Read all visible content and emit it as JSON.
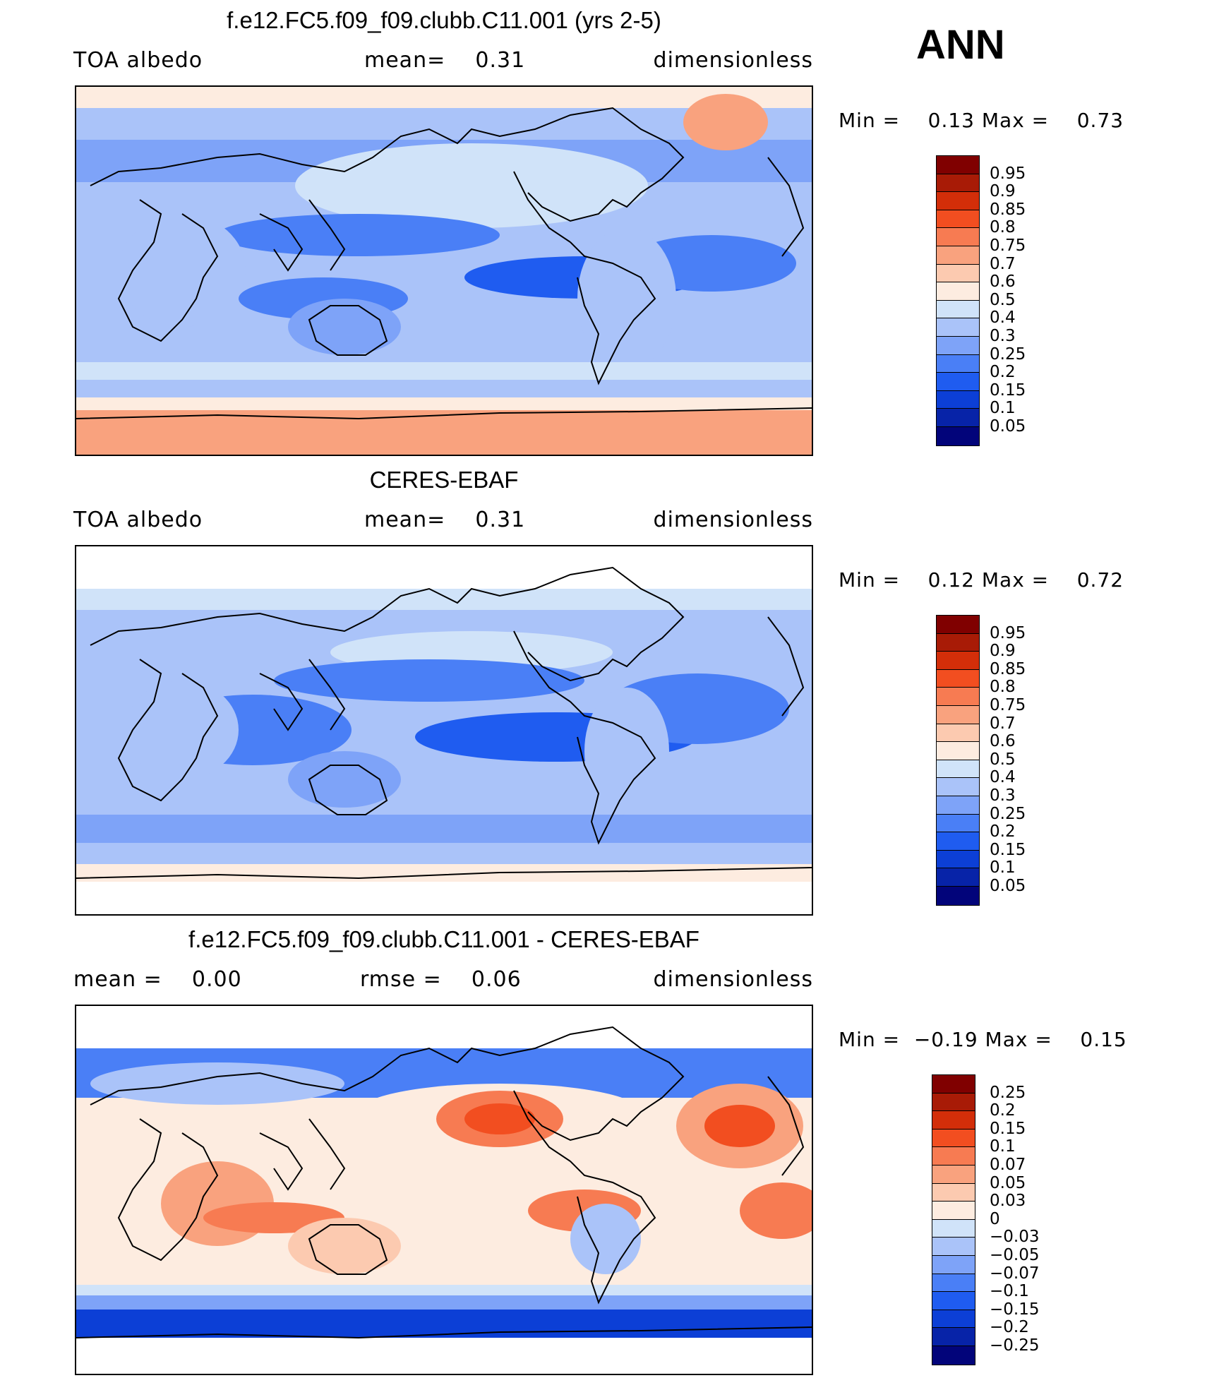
{
  "season_label": "ANN",
  "panels": [
    {
      "title": "f.e12.FC5.f09_f09.clubb.C11.001 (yrs 2-5)",
      "left_label": "TOA albedo",
      "center_label": "mean=    0.31",
      "right_label": "dimensionless",
      "minmax": "Min =    0.13 Max =    0.73"
    },
    {
      "title": "CERES-EBAF",
      "left_label": "TOA albedo",
      "center_label": "mean=    0.31",
      "right_label": "dimensionless",
      "minmax": "Min =    0.12 Max =    0.72"
    },
    {
      "title": "f.e12.FC5.f09_f09.clubb.C11.001 - CERES-EBAF",
      "left_label": "mean =    0.00",
      "center_label": "rmse =    0.06",
      "right_label": "dimensionless",
      "minmax": "Min =  −0.19 Max =    0.15"
    }
  ],
  "chart_data": [
    {
      "type": "heatmap",
      "title": "f.e12.FC5.f09_f09.clubb.C11.001 (yrs 2-5)",
      "variable": "TOA albedo",
      "units": "dimensionless",
      "mean": 0.31,
      "min": 0.13,
      "max": 0.73,
      "levels": [
        0.05,
        0.1,
        0.15,
        0.2,
        0.25,
        0.3,
        0.4,
        0.5,
        0.6,
        0.7,
        0.75,
        0.8,
        0.85,
        0.9,
        0.95
      ],
      "colors": [
        "#02047a",
        "#0723a8",
        "#0c3fd6",
        "#1f5cf0",
        "#4a7ff6",
        "#7ea3f8",
        "#aac3f9",
        "#d0e3f9",
        "#fdece0",
        "#fccab0",
        "#f9a27e",
        "#f77b52",
        "#f24e20",
        "#d32e09",
        "#a81b06",
        "#800000"
      ]
    },
    {
      "type": "heatmap",
      "title": "CERES-EBAF",
      "variable": "TOA albedo",
      "units": "dimensionless",
      "mean": 0.31,
      "min": 0.12,
      "max": 0.72,
      "levels": [
        0.05,
        0.1,
        0.15,
        0.2,
        0.25,
        0.3,
        0.4,
        0.5,
        0.6,
        0.7,
        0.75,
        0.8,
        0.85,
        0.9,
        0.95
      ],
      "colors": [
        "#02047a",
        "#0723a8",
        "#0c3fd6",
        "#1f5cf0",
        "#4a7ff6",
        "#7ea3f8",
        "#aac3f9",
        "#d0e3f9",
        "#fdece0",
        "#fccab0",
        "#f9a27e",
        "#f77b52",
        "#f24e20",
        "#d32e09",
        "#a81b06",
        "#800000"
      ]
    },
    {
      "type": "heatmap",
      "title": "f.e12.FC5.f09_f09.clubb.C11.001 - CERES-EBAF",
      "units": "dimensionless",
      "mean": 0.0,
      "rmse": 0.06,
      "min": -0.19,
      "max": 0.15,
      "levels": [
        -0.25,
        -0.2,
        -0.15,
        -0.1,
        -0.07,
        -0.05,
        -0.03,
        0,
        0.03,
        0.05,
        0.07,
        0.1,
        0.15,
        0.2,
        0.25
      ],
      "level_labels": [
        "−0.25",
        "−0.2",
        "−0.15",
        "−0.1",
        "−0.07",
        "−0.05",
        "−0.03",
        "0",
        "0.03",
        "0.05",
        "0.07",
        "0.1",
        "0.15",
        "0.2",
        "0.25"
      ],
      "colors": [
        "#02047a",
        "#0723a8",
        "#0c3fd6",
        "#1f5cf0",
        "#4a7ff6",
        "#7ea3f8",
        "#aac3f9",
        "#d0e3f9",
        "#fdece0",
        "#fccab0",
        "#f9a27e",
        "#f77b52",
        "#f24e20",
        "#d32e09",
        "#a81b06",
        "#800000"
      ]
    }
  ]
}
